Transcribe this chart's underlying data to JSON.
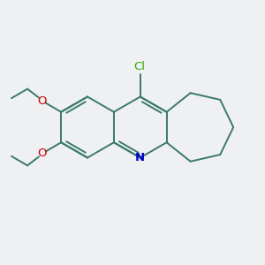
{
  "background_color": "#eff0f2",
  "bond_color": "#3a7a6a",
  "N_color": "#0000cc",
  "O_color": "#cc0000",
  "Cl_color": "#33aa00",
  "figsize": [
    3.0,
    3.0
  ],
  "dpi": 100,
  "bond_lw": 1.4,
  "xlim": [
    0,
    10
  ],
  "ylim": [
    0,
    10
  ]
}
